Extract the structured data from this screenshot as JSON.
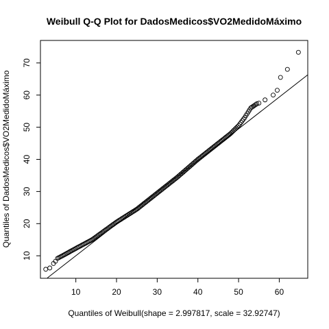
{
  "chart_data": {
    "type": "scatter",
    "title": "Weibull Q-Q Plot for DadosMedicos$VO2MedidoMáximo",
    "xlabel": "Quantiles of Weibull(shape = 2.997817, scale = 32.92747)",
    "ylabel": "Quantiles of DadosMedicos$VO2MedidoMáximo",
    "xlim": [
      1.3,
      67.0
    ],
    "ylim": [
      3.0,
      77.0
    ],
    "x_ticks": [
      10,
      20,
      30,
      40,
      50,
      60
    ],
    "y_ticks": [
      10,
      20,
      30,
      40,
      50,
      60,
      70
    ],
    "grid": false,
    "reference_line": {
      "x": [
        3,
        67
      ],
      "y": [
        3.1,
        66.3
      ]
    },
    "notable_points": [
      {
        "x": 2.6,
        "y": 5.8
      },
      {
        "x": 3.6,
        "y": 6.2
      },
      {
        "x": 4.5,
        "y": 7.6
      },
      {
        "x": 5.0,
        "y": 8.3
      },
      {
        "x": 55.0,
        "y": 57.5
      },
      {
        "x": 56.5,
        "y": 58.5
      },
      {
        "x": 58.5,
        "y": 60.0
      },
      {
        "x": 59.5,
        "y": 61.5
      },
      {
        "x": 60.3,
        "y": 65.5
      },
      {
        "x": 62.0,
        "y": 68.0
      },
      {
        "x": 64.7,
        "y": 73.3
      }
    ],
    "series": [
      {
        "curve_knots": [
          {
            "x": 5.5,
            "y": 9.2
          },
          {
            "x": 7,
            "y": 10.2
          },
          {
            "x": 10,
            "y": 12.3
          },
          {
            "x": 14,
            "y": 15.0
          },
          {
            "x": 20,
            "y": 20.5
          },
          {
            "x": 25,
            "y": 24.5
          },
          {
            "x": 30,
            "y": 29.5
          },
          {
            "x": 35,
            "y": 34.5
          },
          {
            "x": 40,
            "y": 40.0
          },
          {
            "x": 45,
            "y": 45.0
          },
          {
            "x": 48,
            "y": 48.0
          },
          {
            "x": 50,
            "y": 50.5
          },
          {
            "x": 51.5,
            "y": 53.0
          },
          {
            "x": 53,
            "y": 56.0
          },
          {
            "x": 54.5,
            "y": 57.3
          }
        ]
      }
    ]
  }
}
